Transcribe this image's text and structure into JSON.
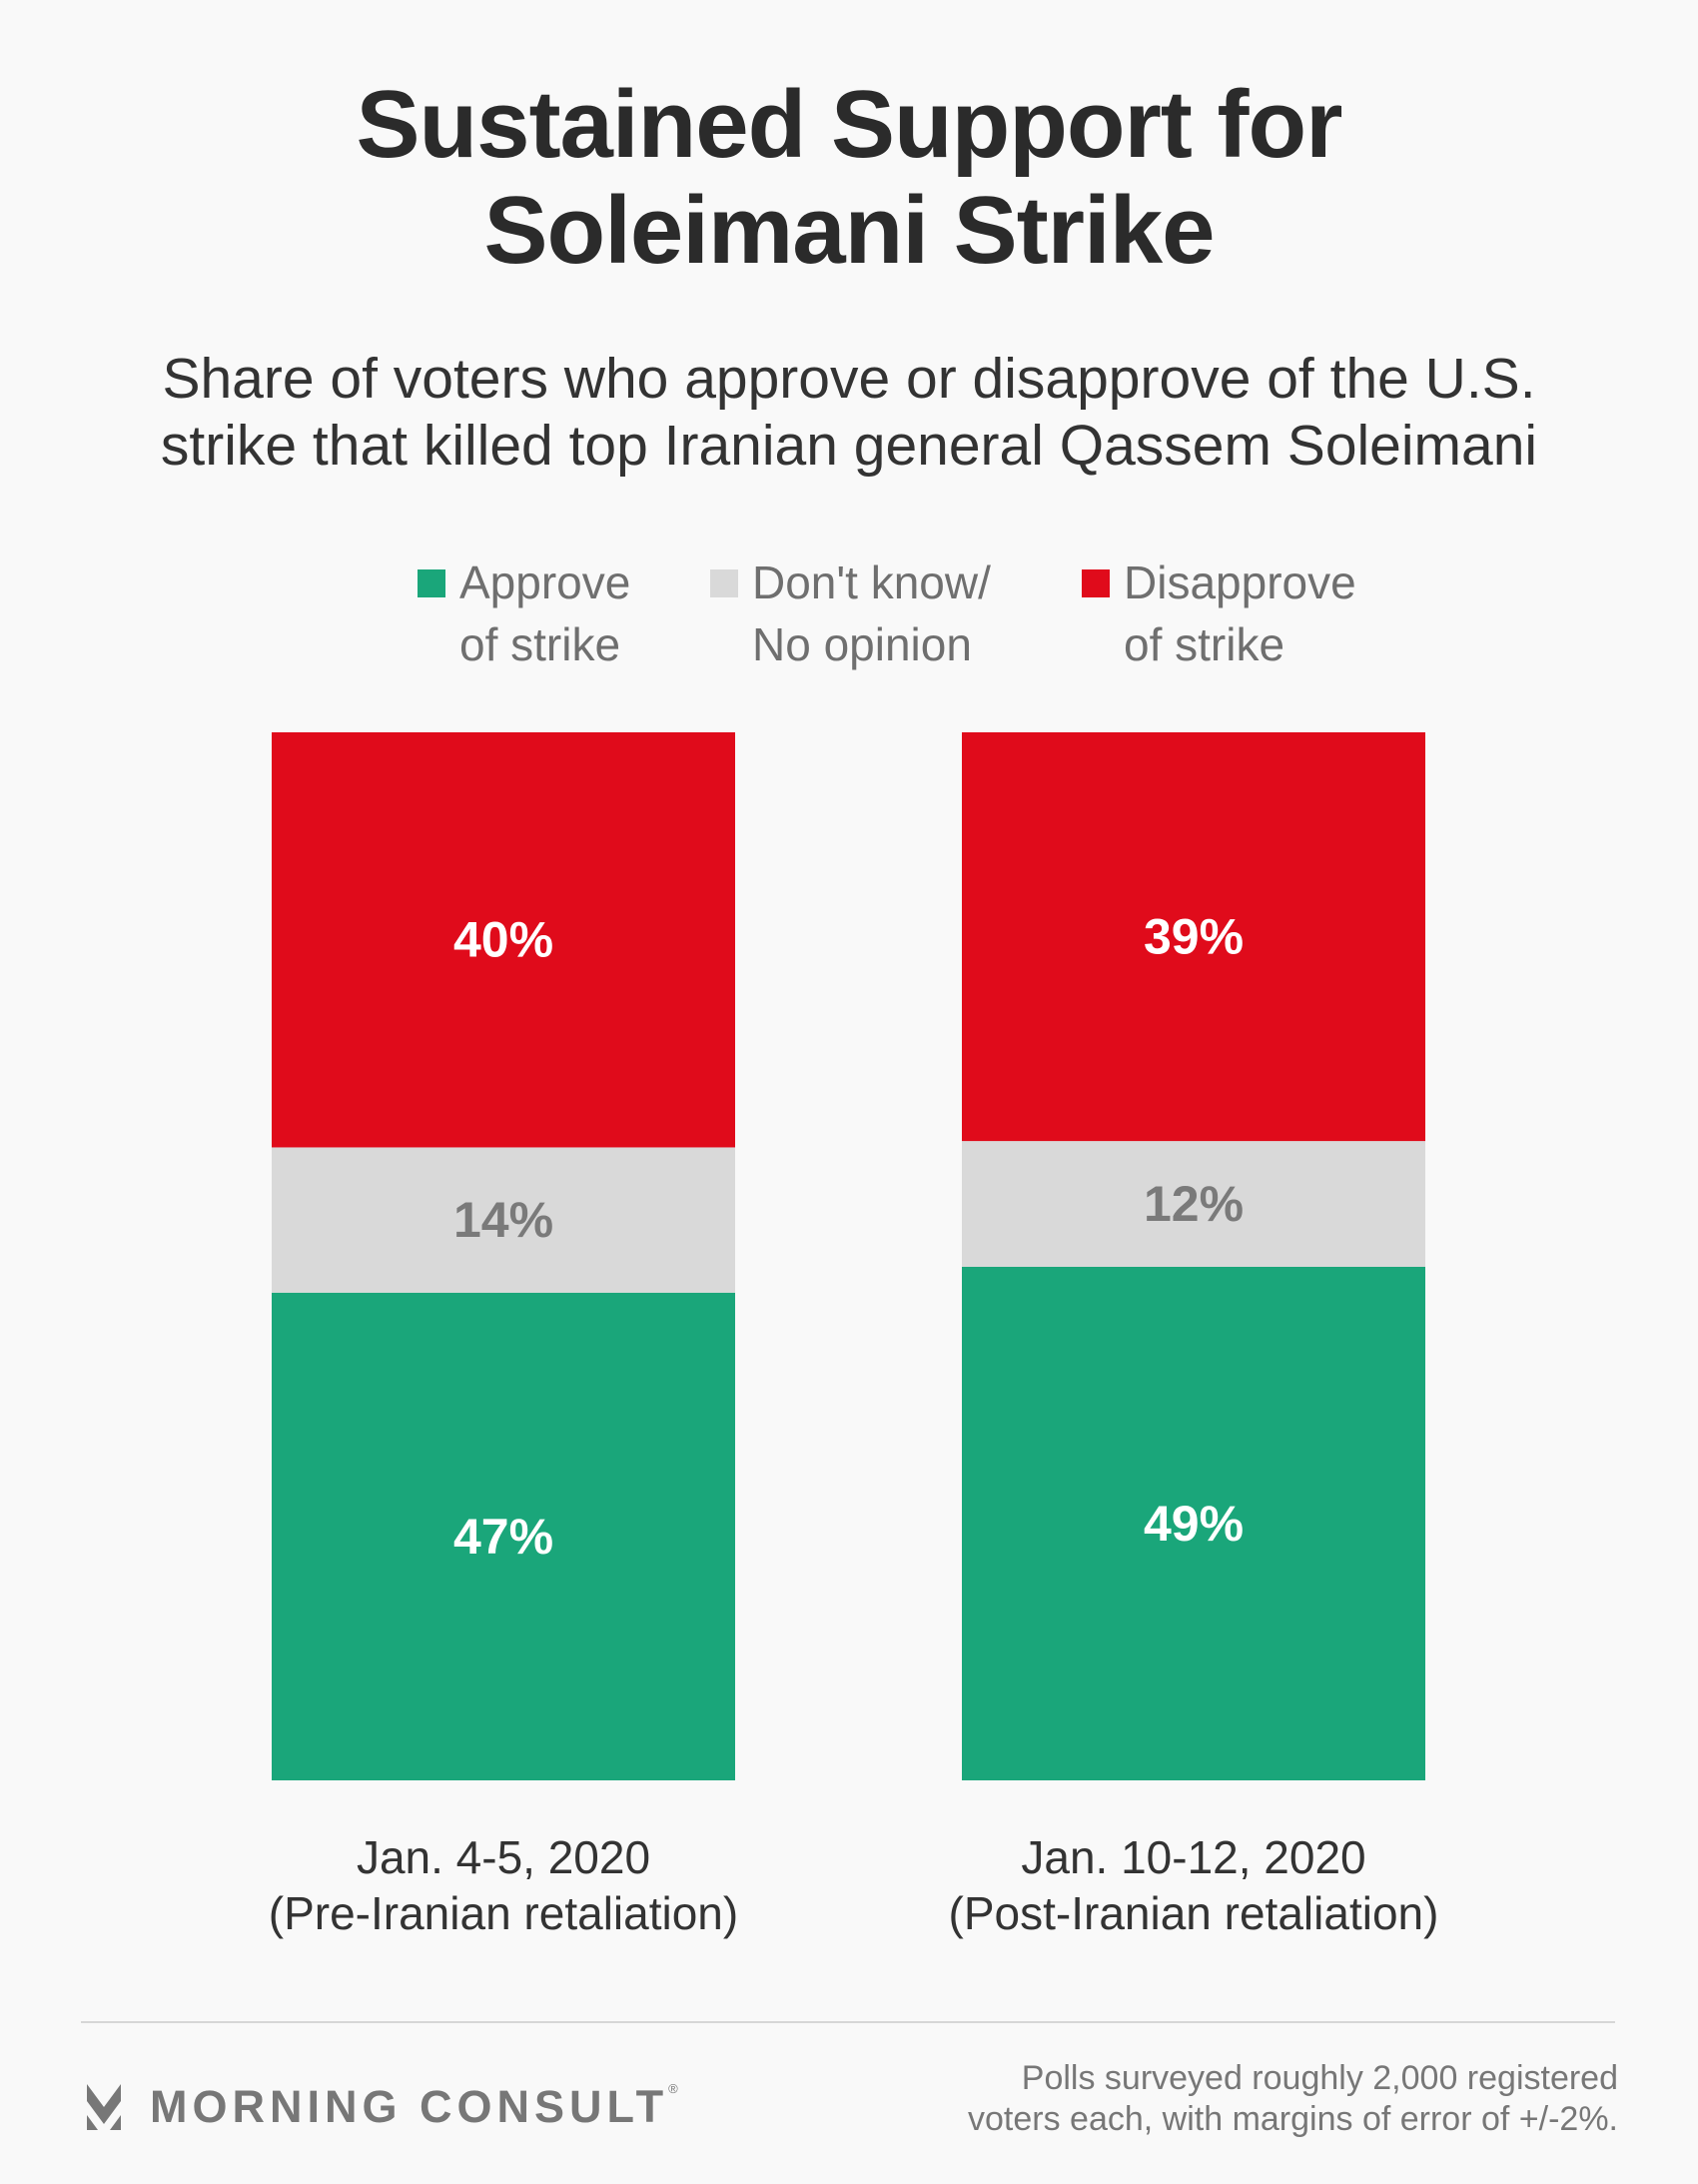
{
  "title": [
    "Sustained Support for",
    "Soleimani Strike"
  ],
  "subtitle": [
    "Share of voters who approve or disapprove of the U.S.",
    "strike that killed top Iranian general Qassem Soleimani"
  ],
  "legend": [
    {
      "lines": [
        "Approve",
        "of strike"
      ],
      "color": "#1aa67a"
    },
    {
      "lines": [
        "Don't know/",
        "No opinion"
      ],
      "color": "#d9d9d9"
    },
    {
      "lines": [
        "Disapprove",
        "of strike"
      ],
      "color": "#e00b1b"
    }
  ],
  "chart_data": {
    "type": "bar",
    "stacked": true,
    "categories": [
      [
        "Jan. 4-5, 2020",
        "(Pre-Iranian retaliation)"
      ],
      [
        "Jan. 10-12, 2020",
        "(Post-Iranian retaliation)"
      ]
    ],
    "series": [
      {
        "name": "Approve of strike",
        "values": [
          47,
          49
        ],
        "labels": [
          "47%",
          "49%"
        ],
        "color": "#1aa67a",
        "label_color": "#ffffff"
      },
      {
        "name": "Don't know/No opinion",
        "values": [
          14,
          12
        ],
        "labels": [
          "14%",
          "12%"
        ],
        "color": "#d9d9d9",
        "label_color": "#7a7a7a"
      },
      {
        "name": "Disapprove of strike",
        "values": [
          40,
          39
        ],
        "labels": [
          "40%",
          "39%"
        ],
        "color": "#e00b1b",
        "label_color": "#ffffff"
      }
    ],
    "ylim": [
      0,
      101
    ],
    "grid": false,
    "legend_position": "top"
  },
  "footer": {
    "logo_text": "MORNING CONSULT",
    "logo_mark": "®",
    "note": [
      "Polls surveyed roughly 2,000 registered",
      "voters each, with margins of error of +/-2%."
    ]
  }
}
